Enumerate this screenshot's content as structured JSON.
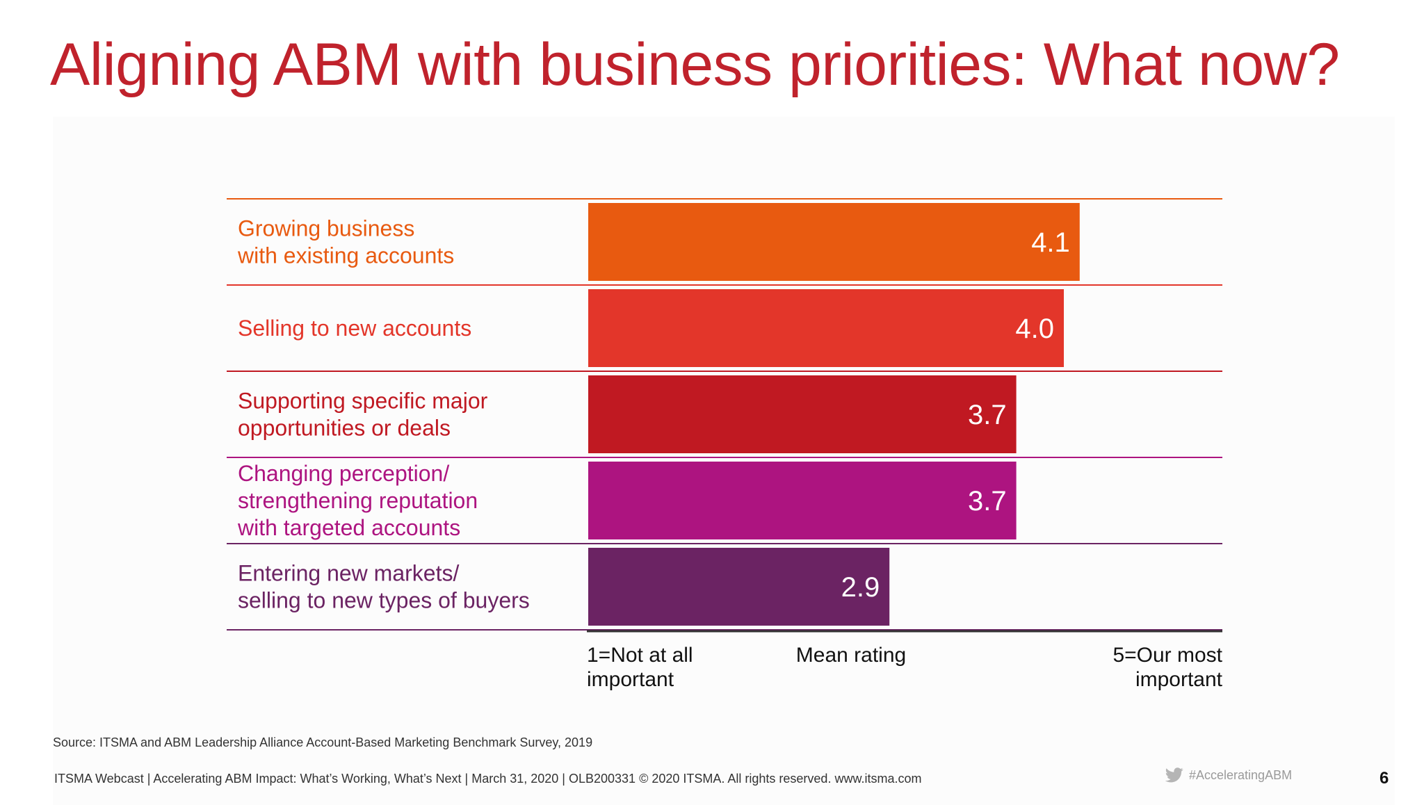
{
  "slide": {
    "title": "Aligning ABM with business priorities: What now?",
    "source": "Source: ITSMA and ABM Leadership Alliance Account-Based Marketing Benchmark Survey, 2019",
    "footer": "ITSMA Webcast | Accelerating ABM Impact: What’s Working, What’s Next | March 31, 2020 | OLB200331 © 2020 ITSMA. All rights reserved. www.itsma.com",
    "hashtag": "#AcceleratingABM",
    "page_number": "6",
    "colors": {
      "title": "#c0222c",
      "hashtag": "#9a9a9a",
      "axis": "#333333"
    }
  },
  "chart_data": {
    "type": "bar",
    "orientation": "horizontal",
    "categories": [
      [
        "Growing business",
        "with existing accounts"
      ],
      [
        "Selling to new accounts"
      ],
      [
        "Supporting specific major",
        "opportunities or deals"
      ],
      [
        "Changing perception/",
        "strengthening reputation",
        "with targeted accounts"
      ],
      [
        "Entering new markets/",
        "selling to new types of buyers"
      ]
    ],
    "values": [
      4.1,
      4.0,
      3.7,
      3.7,
      2.9
    ],
    "value_labels": [
      "4.1",
      "4.0",
      "3.7",
      "3.7",
      "2.9"
    ],
    "colors": [
      "#e85a10",
      "#e3362a",
      "#c01922",
      "#ad1480",
      "#6b2363"
    ],
    "xlim": [
      1,
      5
    ],
    "xlabel": "Mean rating",
    "x_min_label": [
      "1=Not at all",
      "important"
    ],
    "x_max_label": [
      "5=Our most",
      "important"
    ],
    "title": "",
    "legend": "none",
    "grid": false
  }
}
